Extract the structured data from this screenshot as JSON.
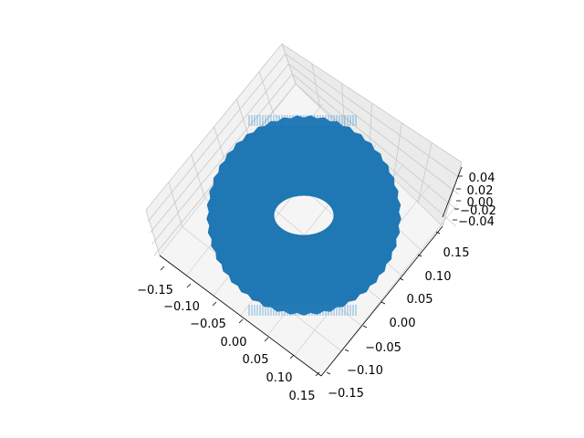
{
  "chart_data": {
    "type": "surface3d",
    "title": "",
    "xlabel": "",
    "ylabel": "",
    "zlabel": "",
    "series": [
      {
        "kind": "torus",
        "color": "#1f77b4",
        "outer_radius": 0.15,
        "inner_radius": 0.05
      }
    ],
    "axes": {
      "x": {
        "ticks": [
          -0.15,
          -0.1,
          -0.05,
          0.0,
          0.05,
          0.1,
          0.15
        ],
        "labels": [
          "−0.15",
          "−0.10",
          "−0.05",
          "0.00",
          "0.05",
          "0.10",
          "0.15"
        ]
      },
      "y": {
        "ticks": [
          -0.15,
          -0.1,
          -0.05,
          0.0,
          0.05,
          0.1,
          0.15
        ],
        "labels": [
          "−0.15",
          "−0.10",
          "−0.05",
          "0.00",
          "0.05",
          "0.10",
          "0.15"
        ]
      },
      "z": {
        "ticks": [
          -0.04,
          -0.02,
          0.0,
          0.02,
          0.04
        ],
        "labels": [
          "−0.04",
          "−0.02",
          "0.00",
          "0.02",
          "0.04"
        ]
      }
    },
    "grid": true,
    "pane_color": "#f2f2f2",
    "grid_color": "#c8c8c8"
  }
}
